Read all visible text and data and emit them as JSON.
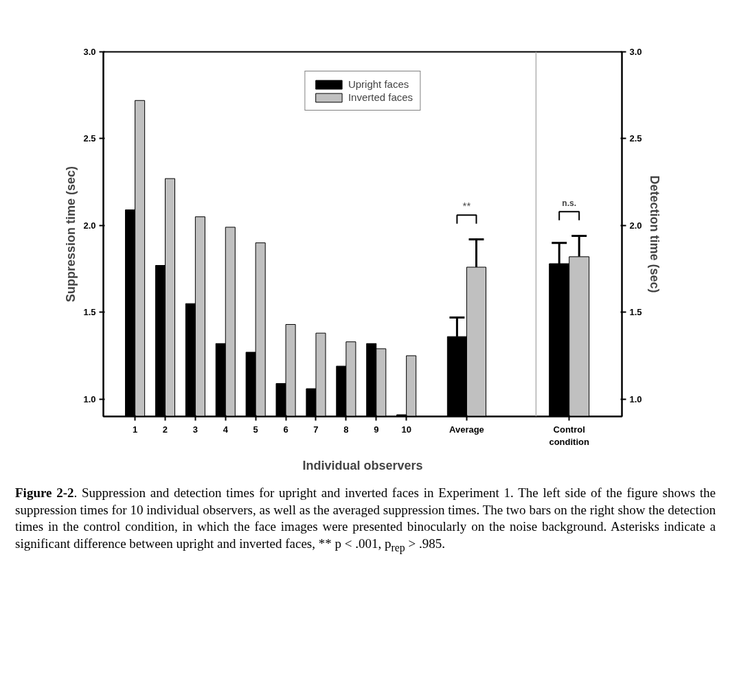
{
  "chart_data": {
    "type": "bar",
    "x": [
      1,
      2,
      3,
      4,
      5,
      6,
      7,
      8,
      9,
      10,
      12,
      15.4
    ],
    "xticks": [
      1,
      2,
      3,
      4,
      5,
      6,
      7,
      8,
      9,
      10,
      {
        "value": 12,
        "label": "Average"
      },
      {
        "value": 15.4,
        "label": "Control\ncondition"
      }
    ],
    "xlim": [
      -0.05,
      17.15
    ],
    "xlabel": "Individual observers",
    "ylabel": "Suppression time (sec)",
    "y2label": "Detection time (sec)",
    "ylim": [
      0.9,
      3.0
    ],
    "yticks": [
      {
        "value": 1,
        "label": "1.0"
      },
      1.5,
      {
        "value": 2,
        "label": "2.0"
      },
      2.5,
      {
        "value": 3,
        "label": "3.0"
      }
    ],
    "y2lim": [
      0.9,
      3.0
    ],
    "y2ticks": [
      {
        "value": 1,
        "label": "1.0"
      },
      1.5,
      {
        "value": 2,
        "label": "2.0"
      },
      2.5,
      {
        "value": 3,
        "label": "3.0"
      }
    ],
    "series": [
      {
        "name": "Upright faces",
        "color": "#000000",
        "values": [
          2.09,
          1.77,
          1.55,
          1.32,
          1.27,
          1.09,
          1.06,
          1.19,
          1.32,
          0.91,
          1.36,
          1.78
        ],
        "errors": [
          null,
          null,
          null,
          null,
          null,
          null,
          null,
          null,
          null,
          null,
          0.11,
          0.12
        ]
      },
      {
        "name": "Inverted faces",
        "color": "#c0c0c0",
        "values": [
          2.72,
          2.27,
          2.05,
          1.99,
          1.9,
          1.43,
          1.38,
          1.33,
          1.29,
          1.25,
          1.76,
          1.82
        ],
        "errors": [
          null,
          null,
          null,
          null,
          null,
          null,
          null,
          null,
          null,
          null,
          0.16,
          0.12
        ]
      }
    ],
    "ref_lines": [
      {
        "axis": "x",
        "value": 14.3,
        "label": null,
        "color": "#b0b0b0"
      }
    ],
    "annotations": [
      "**",
      "n.s.",
      "Figure 2-2. Suppression and detection times for upright and inverted faces in Experiment 1. The left side of the figure shows the suppression times for 10 individual observers, as well as the averaged suppression times. The two bars on the right show the detection times in the control condition, in which the face images were presented binocularly on the noise background. Asterisks indicate a significant difference between upright and inverted faces, ** p < .001, p$_{rep}$ > .985."
    ],
    "legend": "top",
    "grid": false
  }
}
